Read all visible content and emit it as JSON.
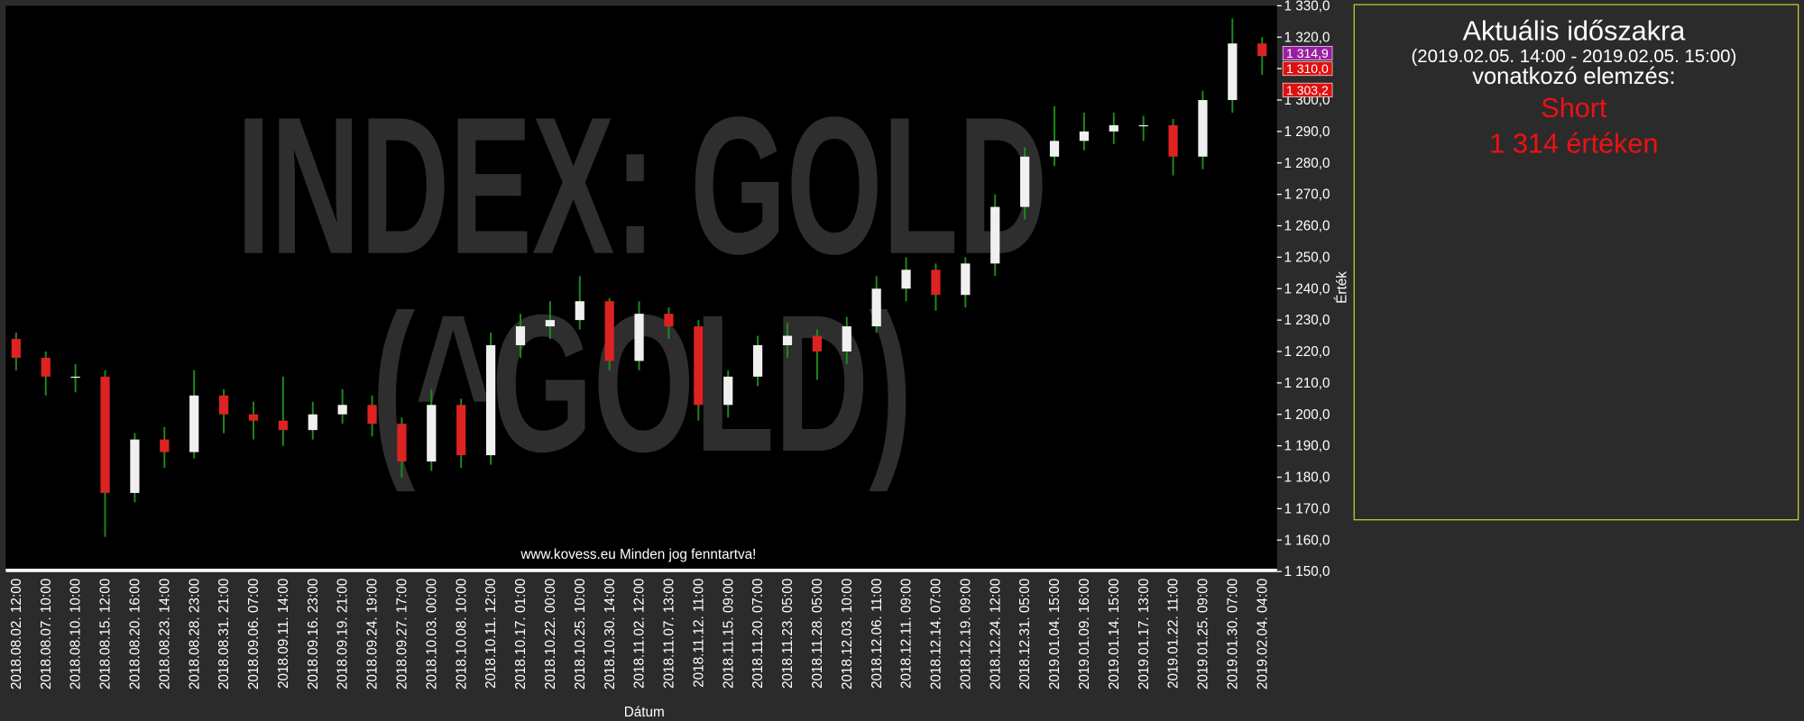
{
  "chart_data": {
    "type": "candlestick",
    "watermark": [
      "INDEX: GOLD",
      "(^GOLD)"
    ],
    "copyright": "www.kovess.eu Minden jog fenntartva!",
    "x_label": "Dátum",
    "y_label": "Érték",
    "up_color": "#f0f0f0",
    "down_color": "#dd2222",
    "wick_color": "#1e8c1e",
    "categories": [
      "2018.08.02.  12:00",
      "2018.08.07.  10:00",
      "2018.08.10.  10:00",
      "2018.08.15.  12:00",
      "2018.08.20.  16:00",
      "2018.08.23.  14:00",
      "2018.08.28.  23:00",
      "2018.08.31.  21:00",
      "2018.09.06.  07:00",
      "2018.09.11.  14:00",
      "2018.09.16.  23:00",
      "2018.09.19.  21:00",
      "2018.09.24.  19:00",
      "2018.09.27.  17:00",
      "2018.10.03.  00:00",
      "2018.10.08.  10:00",
      "2018.10.11.  12:00",
      "2018.10.17.  01:00",
      "2018.10.22.  00:00",
      "2018.10.25.  10:00",
      "2018.10.30.  14:00",
      "2018.11.02.  12:00",
      "2018.11.07.  13:00",
      "2018.11.12.  11:00",
      "2018.11.15.  09:00",
      "2018.11.20.  07:00",
      "2018.11.23.  05:00",
      "2018.11.28.  05:00",
      "2018.12.03.  10:00",
      "2018.12.06.  11:00",
      "2018.12.11.  09:00",
      "2018.12.14.  07:00",
      "2018.12.19.  09:00",
      "2018.12.24.  12:00",
      "2018.12.31.  05:00",
      "2019.01.04.  15:00",
      "2019.01.09.  16:00",
      "2019.01.14.  15:00",
      "2019.01.17.  13:00",
      "2019.01.22.  11:00",
      "2019.01.25.  09:00",
      "2019.01.30.  07:00",
      "2019.02.04.  04:00"
    ],
    "open": [
      1224,
      1218,
      1212,
      1212,
      1175,
      1192,
      1188,
      1206,
      1200,
      1198,
      1195,
      1200,
      1203,
      1197,
      1185,
      1203,
      1187,
      1222,
      1228,
      1230,
      1236,
      1217,
      1232,
      1228,
      1203,
      1212,
      1222,
      1225,
      1220,
      1228,
      1240,
      1246,
      1238,
      1248,
      1266,
      1282,
      1287,
      1290,
      1292,
      1292,
      1282,
      1300,
      1318
    ],
    "high": [
      1226,
      1220,
      1216,
      1214,
      1194,
      1196,
      1214,
      1208,
      1204,
      1212,
      1204,
      1208,
      1206,
      1199,
      1208,
      1205,
      1226,
      1232,
      1236,
      1244,
      1237,
      1236,
      1234,
      1230,
      1214,
      1225,
      1229,
      1227,
      1231,
      1244,
      1250,
      1248,
      1250,
      1270,
      1285,
      1298,
      1296,
      1296,
      1295,
      1294,
      1303,
      1326,
      1320
    ],
    "low": [
      1214,
      1206,
      1207,
      1161,
      1172,
      1183,
      1186,
      1194,
      1192,
      1190,
      1192,
      1197,
      1193,
      1180,
      1182,
      1183,
      1184,
      1218,
      1224,
      1227,
      1214,
      1214,
      1224,
      1198,
      1199,
      1209,
      1218,
      1211,
      1216,
      1226,
      1236,
      1233,
      1234,
      1244,
      1262,
      1279,
      1284,
      1286,
      1287,
      1276,
      1278,
      1296,
      1308
    ],
    "close": [
      1218,
      1212,
      1212,
      1175,
      1192,
      1188,
      1206,
      1200,
      1198,
      1195,
      1200,
      1203,
      1197,
      1185,
      1203,
      1187,
      1222,
      1228,
      1230,
      1236,
      1217,
      1232,
      1228,
      1203,
      1212,
      1222,
      1225,
      1220,
      1228,
      1240,
      1246,
      1238,
      1248,
      1266,
      1282,
      1287,
      1290,
      1292,
      1292,
      1282,
      1300,
      1318,
      1314
    ],
    "ylim": [
      1150,
      1330
    ],
    "yticks": [
      {
        "value": 1150,
        "label": "1 150,0"
      },
      {
        "value": 1160,
        "label": "1 160,0"
      },
      {
        "value": 1170,
        "label": "1 170,0"
      },
      {
        "value": 1180,
        "label": "1 180,0"
      },
      {
        "value": 1190,
        "label": "1 190,0"
      },
      {
        "value": 1200,
        "label": "1 200,0"
      },
      {
        "value": 1210,
        "label": "1 210,0"
      },
      {
        "value": 1220,
        "label": "1 220,0"
      },
      {
        "value": 1230,
        "label": "1 230,0"
      },
      {
        "value": 1240,
        "label": "1 240,0"
      },
      {
        "value": 1250,
        "label": "1 250,0"
      },
      {
        "value": 1260,
        "label": "1 260,0"
      },
      {
        "value": 1270,
        "label": "1 270,0"
      },
      {
        "value": 1280,
        "label": "1 280,0"
      },
      {
        "value": 1290,
        "label": "1 290,0"
      },
      {
        "value": 1300,
        "label": "1 300,0"
      },
      {
        "value": 1310,
        "label": "1 310,0"
      },
      {
        "value": 1320,
        "label": "1 320,0"
      },
      {
        "value": 1330,
        "label": "1 330,0"
      }
    ],
    "price_tags": [
      {
        "value": 1314.9,
        "label": "1 314,9",
        "color": "#9a1fa0"
      },
      {
        "value": 1310.0,
        "label": "1 310,0",
        "color": "#e01010"
      },
      {
        "value": 1303.2,
        "label": "1 303,2",
        "color": "#e01010"
      }
    ]
  },
  "panel": {
    "title": "Aktuális időszakra",
    "period": "(2019.02.05. 14:00 - 2019.02.05. 15:00)",
    "subtitle": "vonatkozó elemzés:",
    "signal": "Short",
    "price": "1 314  értéken"
  }
}
